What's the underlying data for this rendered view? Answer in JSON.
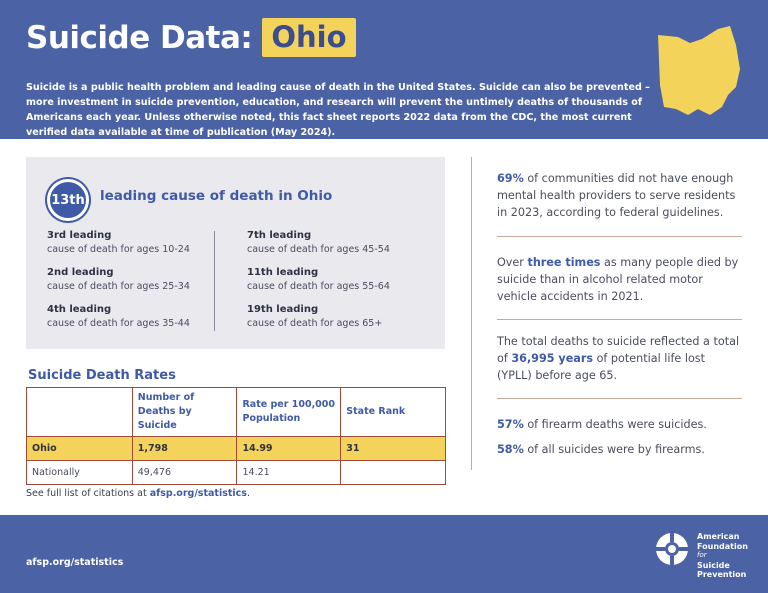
{
  "header": {
    "title": "Suicide Data:",
    "state": "Ohio",
    "intro": "Suicide is a public health problem and leading cause of death in the United States. Suicide can also be prevented – more investment in suicide prevention, education, and research will prevent the untimely deaths of thousands of Americans each year. Unless otherwise noted, this fact sheet reports 2022 data from the CDC, the most current verified data available at time of publication (May 2024)."
  },
  "colors": {
    "brand_blue": "#4b62a5",
    "accent_yellow": "#f4d35b",
    "card_gray": "#e9e9ee"
  },
  "ranking": {
    "badge": "13th",
    "headline": "leading cause of death in Ohio",
    "left": [
      {
        "label": "3rd leading",
        "sub": "cause of death for ages 10-24"
      },
      {
        "label": "2nd leading",
        "sub": "cause of death for ages 25-34"
      },
      {
        "label": "4th leading",
        "sub": "cause of death for ages 35-44"
      }
    ],
    "right": [
      {
        "label": "7th leading",
        "sub": "cause of death for ages 45-54"
      },
      {
        "label": "11th leading",
        "sub": "cause of death for ages 55-64"
      },
      {
        "label": "19th leading",
        "sub": "cause of death for ages 65+"
      }
    ]
  },
  "rates": {
    "title": "Suicide Death Rates",
    "columns": [
      "",
      "Number of Deaths by Suicide",
      "Rate per 100,000 Population",
      "State Rank"
    ],
    "rows": [
      {
        "label": "Ohio",
        "deaths": "1,798",
        "rate": "14.99",
        "rank": "31"
      },
      {
        "label": "Nationally",
        "deaths": "49,476",
        "rate": "14.21",
        "rank": ""
      }
    ]
  },
  "citations": {
    "prefix": "See full list of citations at ",
    "link": "afsp.org/statistics",
    "suffix": "."
  },
  "stats": [
    {
      "highlight": "69%",
      "text": " of communities did not have enough mental health providers to serve residents in 2023, according to federal guidelines."
    },
    {
      "pre": "Over ",
      "highlight": "three times",
      "text": " as many people died by suicide than in alcohol related motor vehicle accidents in 2021."
    },
    {
      "pre": "The total deaths to suicide reflected a total of ",
      "highlight": "36,995 years",
      "text": " of potential life lost (YPLL) before age 65."
    },
    {
      "highlight": "57%",
      "text": " of firearm deaths were suicides."
    },
    {
      "highlight": "58%",
      "text": " of all suicides were by firearms."
    }
  ],
  "footer": {
    "url": "afsp.org/statistics",
    "org_line1": "American",
    "org_line2": "Foundation",
    "org_for": "for",
    "org_line3": "Suicide",
    "org_line4": "Prevention"
  }
}
